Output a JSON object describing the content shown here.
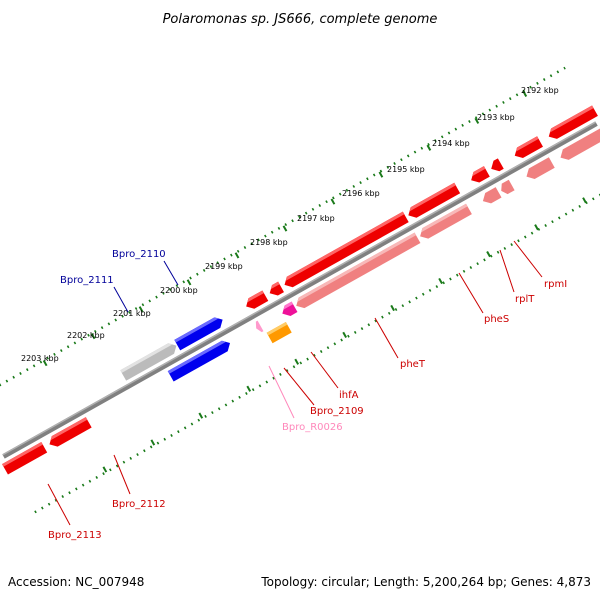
{
  "title": "Polaromonas sp. JS666, complete genome",
  "footer": {
    "accession": "Accession: NC_007948",
    "topology": "Topology: circular; Length: 5,200,264 bp; Genes: 4,873"
  },
  "scale": {
    "ticks": [
      "2192 kbp",
      "2193 kbp",
      "2194 kbp",
      "2195 kbp",
      "2196 kbp",
      "2197 kbp",
      "2198 kbp",
      "2199 kbp",
      "2200 kbp",
      "2201 kbp",
      "2202 kbp",
      "2203 kbp"
    ]
  },
  "genes": {
    "Bpro_2110": "Bpro_2110",
    "Bpro_2111": "Bpro_2111",
    "Bpro_2112": "Bpro_2112",
    "Bpro_2113": "Bpro_2113",
    "Bpro_R0026": "Bpro_R0026",
    "Bpro_2109": "Bpro_2109",
    "ihfA": "ihfA",
    "pheT": "pheT",
    "pheS": "pheS",
    "rplT": "rplT",
    "rpmI": "rpmI"
  },
  "colors": {
    "forward_cds": "#0000ee",
    "reverse_cds": "#ee0000",
    "reverse_cds_light": "#f08080",
    "pseudogene": "#bbbbbb",
    "rna": "#ff99cc",
    "other_a": "#ff9900",
    "other_b": "#ee1199",
    "backbone": "#808080",
    "ticks": "#1a7a1a",
    "label_forward": "#000099",
    "label_reverse": "#cc0000",
    "label_rna": "#ff88bb"
  }
}
